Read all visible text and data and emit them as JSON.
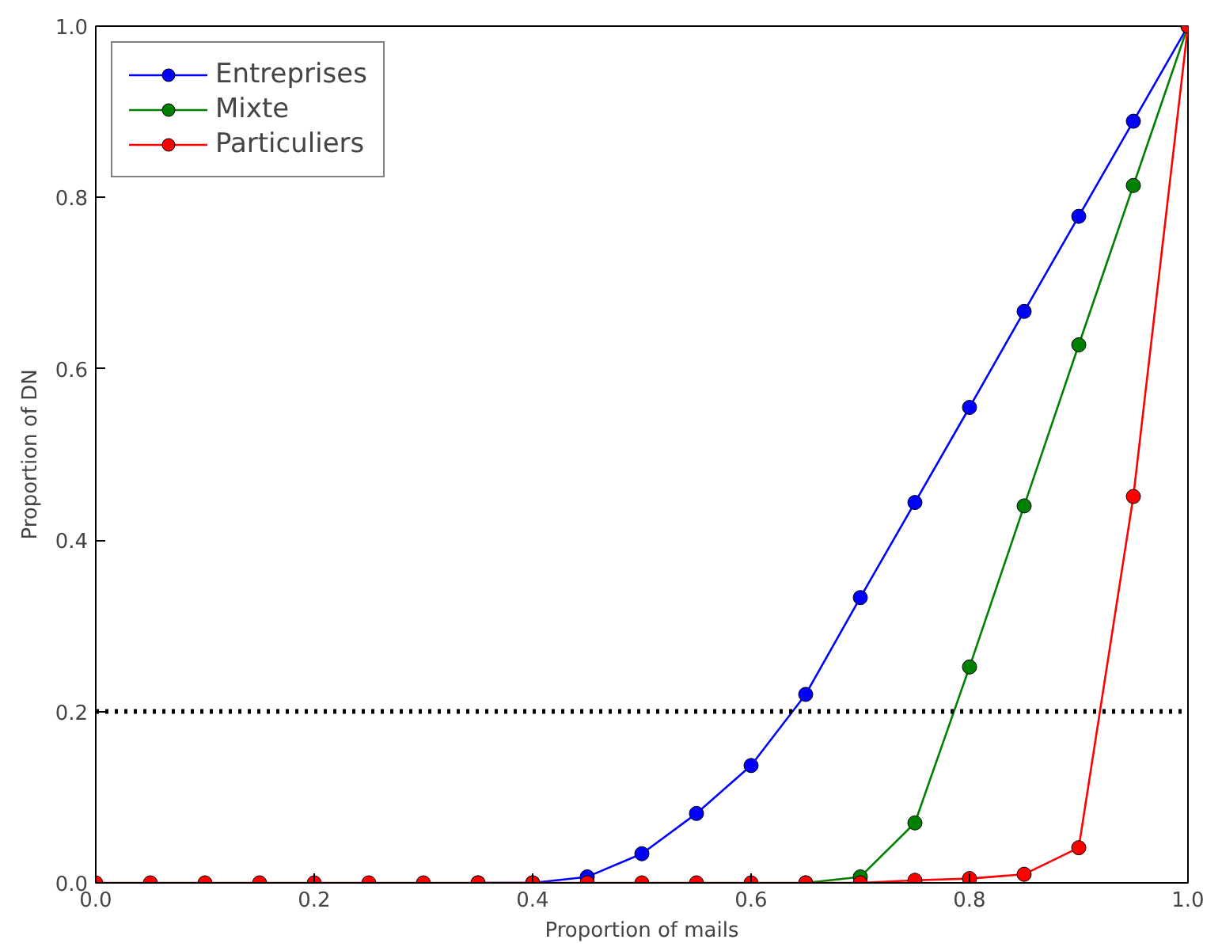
{
  "chart_data": {
    "type": "line",
    "xlabel": "Proportion of mails",
    "ylabel": "Proportion of DN",
    "x": [
      0,
      0.05,
      0.1,
      0.15,
      0.2,
      0.25,
      0.3,
      0.35,
      0.4,
      0.45,
      0.5,
      0.55,
      0.6,
      0.65,
      0.7,
      0.75,
      0.8,
      0.85,
      0.9,
      0.95,
      1.0
    ],
    "series": [
      {
        "name": "Entreprises",
        "color": "#0000ff",
        "values": [
          null,
          null,
          null,
          null,
          null,
          null,
          null,
          0,
          0,
          0.007,
          0.034,
          0.081,
          0.137,
          0.22,
          0.333,
          0.444,
          0.555,
          0.667,
          0.778,
          0.889,
          1.0
        ]
      },
      {
        "name": "Mixte",
        "color": "#008000",
        "values": [
          null,
          null,
          null,
          null,
          null,
          null,
          null,
          null,
          null,
          null,
          null,
          null,
          null,
          0,
          0.007,
          0.07,
          0.252,
          0.44,
          0.628,
          0.814,
          1.0
        ]
      },
      {
        "name": "Particuliers",
        "color": "#ff0000",
        "values": [
          0,
          0,
          0,
          0,
          0,
          0,
          0,
          0,
          0,
          0,
          0,
          0,
          0,
          0,
          0,
          0.003,
          0.005,
          0.01,
          0.041,
          0.451,
          1.0
        ]
      }
    ],
    "xlim": [
      0,
      1
    ],
    "ylim": [
      0,
      1
    ],
    "xticks": [
      {
        "value": 0,
        "label": "0.0"
      },
      0.2,
      0.4,
      0.6,
      0.8,
      {
        "value": 1,
        "label": "1.0"
      }
    ],
    "yticks": [
      {
        "value": 0,
        "label": "0.0"
      },
      0.2,
      0.4,
      0.6,
      0.8,
      {
        "value": 1,
        "label": "1.0"
      }
    ],
    "ref_lines": [
      {
        "axis": "y",
        "value": 0.2,
        "color": "#000000",
        "line_style": "dotted"
      }
    ],
    "grid": false,
    "legend": "top left",
    "marker": "circle",
    "line_style": "solid"
  }
}
